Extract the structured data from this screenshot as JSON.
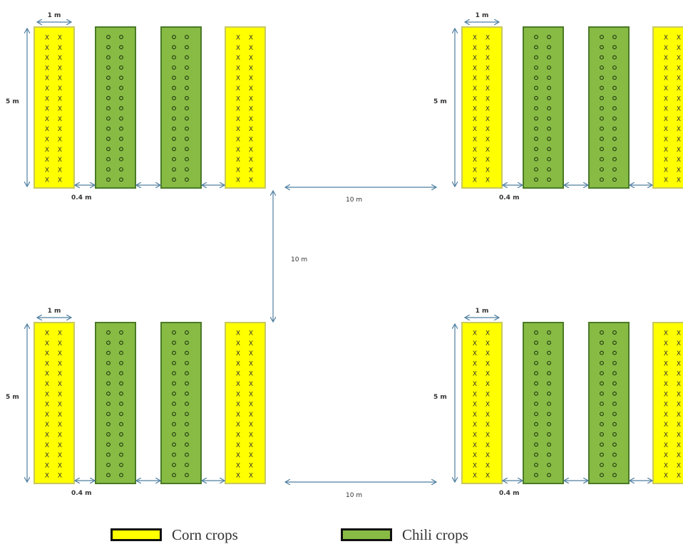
{
  "colors": {
    "corn": "#ffff00",
    "corn_border": "#c8c860",
    "chili": "#88bb44",
    "chili_border": "#4a7a26",
    "arrow": "#4f7fa0"
  },
  "labels": {
    "bed_width": "1 m",
    "bed_length": "5 m",
    "bed_gap": "0.4 m",
    "plot_gap_h": "10 m",
    "plot_gap_v": "10 m"
  },
  "markers": {
    "corn": "X",
    "chili": "o"
  },
  "legend": [
    {
      "key": "corn",
      "label": "Corn crops"
    },
    {
      "key": "chili",
      "label": "Chili crops"
    }
  ],
  "plots": [
    {
      "id": "top-left",
      "beds": [
        "corn",
        "chili",
        "chili",
        "corn"
      ]
    },
    {
      "id": "top-right",
      "beds": [
        "corn",
        "chili",
        "chili",
        "corn"
      ]
    },
    {
      "id": "bottom-left",
      "beds": [
        "corn",
        "chili",
        "chili",
        "corn"
      ]
    },
    {
      "id": "bottom-right",
      "beds": [
        "corn",
        "chili",
        "chili",
        "corn"
      ]
    }
  ]
}
